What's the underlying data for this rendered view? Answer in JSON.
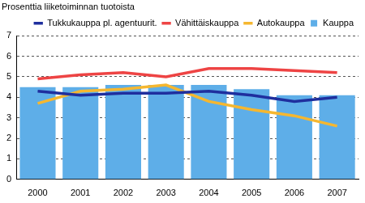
{
  "chart_data": {
    "type": "bar",
    "title": "Prosenttia liiketoiminnan tuotoista",
    "categories": [
      "2000",
      "2001",
      "2002",
      "2003",
      "2004",
      "2005",
      "2006",
      "2007"
    ],
    "series": [
      {
        "name": "Kauppa",
        "type": "bar",
        "color": "#5eaee8",
        "values": [
          4.5,
          4.5,
          4.6,
          4.6,
          4.6,
          4.4,
          4.1,
          4.1
        ]
      },
      {
        "name": "Tukkukauppa pl. agentuurit.",
        "type": "line",
        "color": "#1f2f9e",
        "values": [
          4.3,
          4.1,
          4.2,
          4.2,
          4.3,
          4.1,
          3.8,
          4.0
        ]
      },
      {
        "name": "Vähittäiskauppa",
        "type": "line",
        "color": "#ee4444",
        "values": [
          4.9,
          5.1,
          5.2,
          5.0,
          5.4,
          5.4,
          5.3,
          5.2
        ]
      },
      {
        "name": "Autokauppa",
        "type": "line",
        "color": "#f5b730",
        "values": [
          3.7,
          4.3,
          4.4,
          4.6,
          3.8,
          3.4,
          3.1,
          2.6
        ]
      }
    ],
    "ylim": [
      0,
      7
    ],
    "yticks": [
      0,
      1,
      2,
      3,
      4,
      5,
      6,
      7
    ],
    "grid": true,
    "legend": "top"
  }
}
